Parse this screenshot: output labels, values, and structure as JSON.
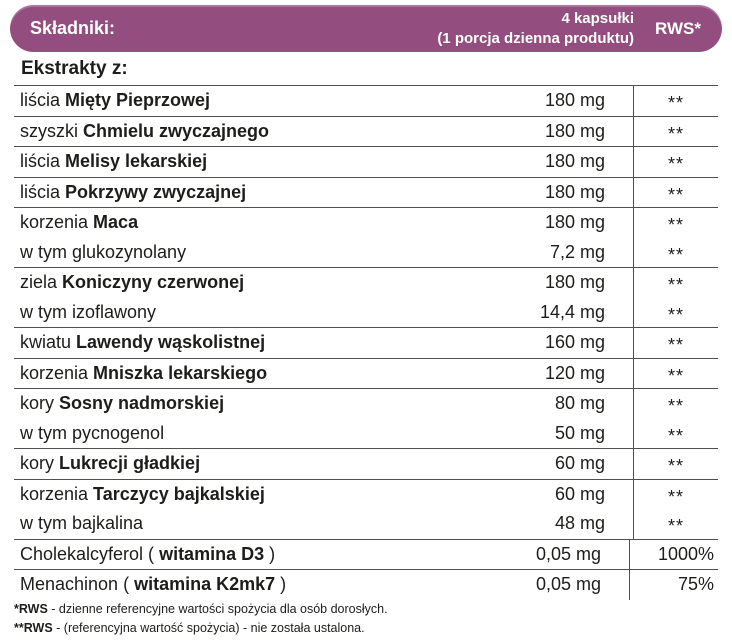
{
  "header": {
    "title": "Składniki:",
    "serving_line1": "4 kapsułki",
    "serving_line2": "(1 porcja dzienna produktu)",
    "rws_label": "RWS*"
  },
  "section_title": "Ekstrakty z:",
  "table": {
    "rows": [
      {
        "prefix": "liścia ",
        "bold": "Mięty Pieprzowej",
        "suffix": "",
        "amount": "180 mg",
        "rws": "**",
        "sub": false
      },
      {
        "prefix": "szyszki ",
        "bold": "Chmielu zwyczajnego",
        "suffix": "",
        "amount": "180 mg",
        "rws": "**",
        "sub": false
      },
      {
        "prefix": "liścia ",
        "bold": "Melisy lekarskiej",
        "suffix": "",
        "amount": "180 mg",
        "rws": "**",
        "sub": false
      },
      {
        "prefix": "liścia ",
        "bold": "Pokrzywy zwyczajnej",
        "suffix": "",
        "amount": "180 mg",
        "rws": "**",
        "sub": false
      },
      {
        "prefix": "korzenia ",
        "bold": "Maca",
        "suffix": "",
        "amount": "180 mg",
        "rws": "**",
        "sub": false
      },
      {
        "prefix": "w tym glukozynolany",
        "bold": "",
        "suffix": "",
        "amount": "7,2 mg",
        "rws": "**",
        "sub": true
      },
      {
        "prefix": "ziela ",
        "bold": "Koniczyny czerwonej",
        "suffix": "",
        "amount": "180 mg",
        "rws": "**",
        "sub": false
      },
      {
        "prefix": "w tym izoflawony",
        "bold": "",
        "suffix": "",
        "amount": "14,4 mg",
        "rws": "**",
        "sub": true
      },
      {
        "prefix": "kwiatu ",
        "bold": "Lawendy wąskolistnej",
        "suffix": "",
        "amount": "160 mg",
        "rws": "**",
        "sub": false
      },
      {
        "prefix": "korzenia ",
        "bold": "Mniszka lekarskiego",
        "suffix": "",
        "amount": "120 mg",
        "rws": "**",
        "sub": false
      },
      {
        "prefix": "kory ",
        "bold": "Sosny nadmorskiej",
        "suffix": "",
        "amount": "80 mg",
        "rws": "**",
        "sub": false
      },
      {
        "prefix": "w tym pycnogenol",
        "bold": "",
        "suffix": "",
        "amount": "50 mg",
        "rws": "**",
        "sub": true
      },
      {
        "prefix": "kory ",
        "bold": "Lukrecji gładkiej",
        "suffix": "",
        "amount": "60 mg",
        "rws": "**",
        "sub": false
      },
      {
        "prefix": "korzenia ",
        "bold": "Tarczycy bajkalskiej",
        "suffix": "",
        "amount": "60 mg",
        "rws": "**",
        "sub": false
      },
      {
        "prefix": "w tym bajkalina",
        "bold": "",
        "suffix": "",
        "amount": "48 mg",
        "rws": "**",
        "sub": true
      },
      {
        "prefix": "Cholekalcyferol ( ",
        "bold": "witamina D3",
        "suffix": " )",
        "amount": "0,05 mg",
        "rws": "1000%",
        "sub": false
      },
      {
        "prefix": "Menachinon ( ",
        "bold": "witamina K2mk7",
        "suffix": " )",
        "amount": "0,05 mg",
        "rws": "75%",
        "sub": false
      }
    ]
  },
  "footnotes": [
    {
      "bold": "*RWS",
      "text": " - dzienne referencyjne wartości spożycia dla osób dorosłych."
    },
    {
      "bold": "**RWS",
      "text": " - (referencyjna wartość spożycia) - nie została ustalona."
    }
  ],
  "colors": {
    "header_bg": "#934E7F",
    "header_text": "#FFFFFF",
    "line": "#4F4F4F",
    "text": "#1D1D1B"
  }
}
